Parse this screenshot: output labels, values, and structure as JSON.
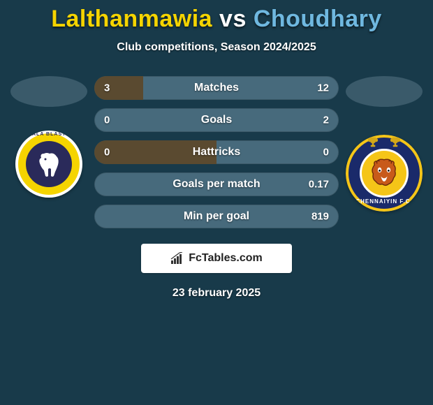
{
  "background_color": "#183a4a",
  "title": {
    "player1": "Lalthanmawia",
    "vs": "vs",
    "player2": "Choudhary",
    "player1_color": "#f5d400",
    "player2_color": "#6fb8e0",
    "vs_color": "#ffffff"
  },
  "subtitle": "Club competitions, Season 2024/2025",
  "avatar_oval_color": "#3a5a6a",
  "team_left": {
    "name": "Kerala Blasters",
    "badge_bg": "#ffffff",
    "ring_color": "#f5d400",
    "inner_color": "#2a2a5a",
    "icon_name": "elephant-icon"
  },
  "team_right": {
    "name": "Chennaiyin F.C.",
    "badge_bg": "#1a2a6a",
    "ring_color": "#f5c518",
    "face_color": "#f5c518",
    "icon_name": "lion-face-icon"
  },
  "stats": {
    "bar_bg_right": "#476a7c",
    "bar_bg_left": "#5a4a30",
    "rows": [
      {
        "label": "Matches",
        "left": "3",
        "right": "12",
        "left_pct": 20.0
      },
      {
        "label": "Goals",
        "left": "0",
        "right": "2",
        "left_pct": 0.0
      },
      {
        "label": "Hattricks",
        "left": "0",
        "right": "0",
        "left_pct": 50.0
      },
      {
        "label": "Goals per match",
        "left": "",
        "right": "0.17",
        "left_pct": 0.0
      },
      {
        "label": "Min per goal",
        "left": "",
        "right": "819",
        "left_pct": 0.0
      }
    ]
  },
  "footer": {
    "brand": "FcTables.com",
    "icon_name": "bar-chart-icon",
    "box_bg": "#ffffff",
    "text_color": "#222222"
  },
  "date": "23 february 2025"
}
